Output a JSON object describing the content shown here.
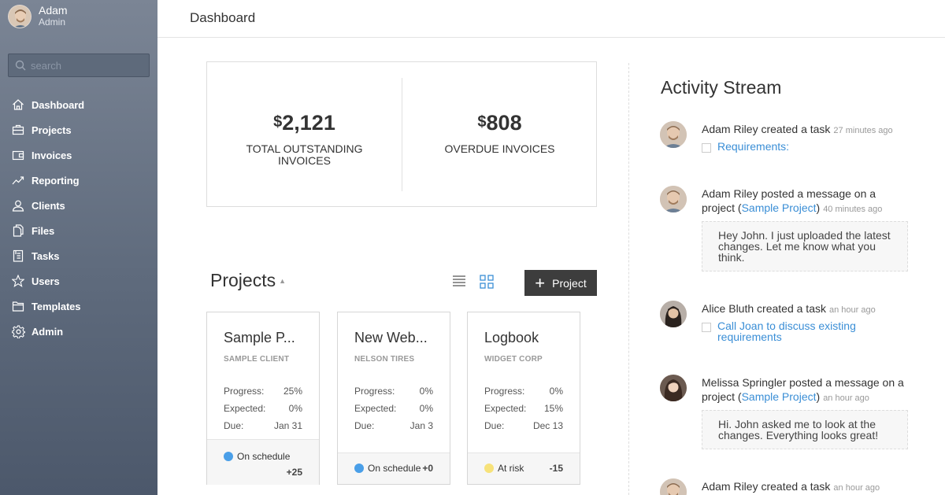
{
  "user": {
    "name": "Adam",
    "role": "Admin"
  },
  "search": {
    "placeholder": "search"
  },
  "nav": [
    {
      "label": "Dashboard",
      "icon": "home-icon"
    },
    {
      "label": "Projects",
      "icon": "briefcase-icon"
    },
    {
      "label": "Invoices",
      "icon": "wallet-icon"
    },
    {
      "label": "Reporting",
      "icon": "chart-line-icon"
    },
    {
      "label": "Clients",
      "icon": "person-icon"
    },
    {
      "label": "Files",
      "icon": "files-icon"
    },
    {
      "label": "Tasks",
      "icon": "clipboard-icon"
    },
    {
      "label": "Users",
      "icon": "star-icon"
    },
    {
      "label": "Templates",
      "icon": "folder-icon"
    },
    {
      "label": "Admin",
      "icon": "gear-icon"
    }
  ],
  "header": {
    "title": "Dashboard"
  },
  "summary": {
    "outstanding": {
      "currency": "$",
      "amount": "2,121",
      "label": "TOTAL OUTSTANDING INVOICES"
    },
    "overdue": {
      "currency": "$",
      "amount": "808",
      "label": "OVERDUE INVOICES"
    }
  },
  "projects": {
    "title": "Projects",
    "new_label": "Project",
    "cards": [
      {
        "name": "Sample P...",
        "client": "SAMPLE CLIENT",
        "progress": "25%",
        "expected": "0%",
        "due": "Jan 31",
        "status": "On schedule",
        "status_color": "#4a9fe8",
        "delta": "+25"
      },
      {
        "name": "New Web...",
        "client": "NELSON TIRES",
        "progress": "0%",
        "expected": "0%",
        "due": "Jan 3",
        "status": "On schedule",
        "status_color": "#4a9fe8",
        "delta": "+0"
      },
      {
        "name": "Logbook",
        "client": "WIDGET CORP",
        "progress": "0%",
        "expected": "15%",
        "due": "Dec 13",
        "status": "At risk",
        "status_color": "#f7e27a",
        "delta": "-15"
      }
    ],
    "labels": {
      "progress": "Progress:",
      "expected": "Expected:",
      "due": "Due:"
    }
  },
  "activity": {
    "title": "Activity Stream",
    "items": [
      {
        "user": "Adam Riley",
        "action": "created a task",
        "time": "27 minutes ago",
        "task": "Requirements:"
      },
      {
        "user": "Adam Riley",
        "action": "posted a message on a project (",
        "project": "Sample Project",
        "action_end": ")",
        "time": "40 minutes ago",
        "message": "Hey John. I just uploaded the latest changes. Let me know what you think."
      },
      {
        "user": "Alice Bluth",
        "action": "created a task",
        "time": "an hour ago",
        "task": "Call Joan to discuss existing requirements"
      },
      {
        "user": "Melissa Springler",
        "action": "posted a message on a project (",
        "project": "Sample Project",
        "action_end": ")",
        "time": "an hour ago",
        "message": "Hi. John asked me to look at the changes. Everything looks great!"
      },
      {
        "user": "Adam Riley",
        "action": "created a task",
        "time": "an hour ago"
      }
    ]
  },
  "colors": {
    "sidebar_top": "#7b8595",
    "sidebar_bottom": "#4c586b",
    "link": "#3a8ed6",
    "button": "#3d3d3d"
  }
}
